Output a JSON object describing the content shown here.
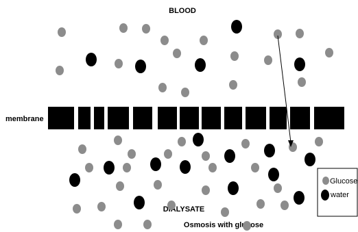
{
  "labels": {
    "top": "BLOOD",
    "membrane": "membrane",
    "bottom": "DIALYSATE",
    "caption": "Osmosis with glucose"
  },
  "legend": {
    "items": [
      "Glucose",
      "water"
    ]
  }
}
